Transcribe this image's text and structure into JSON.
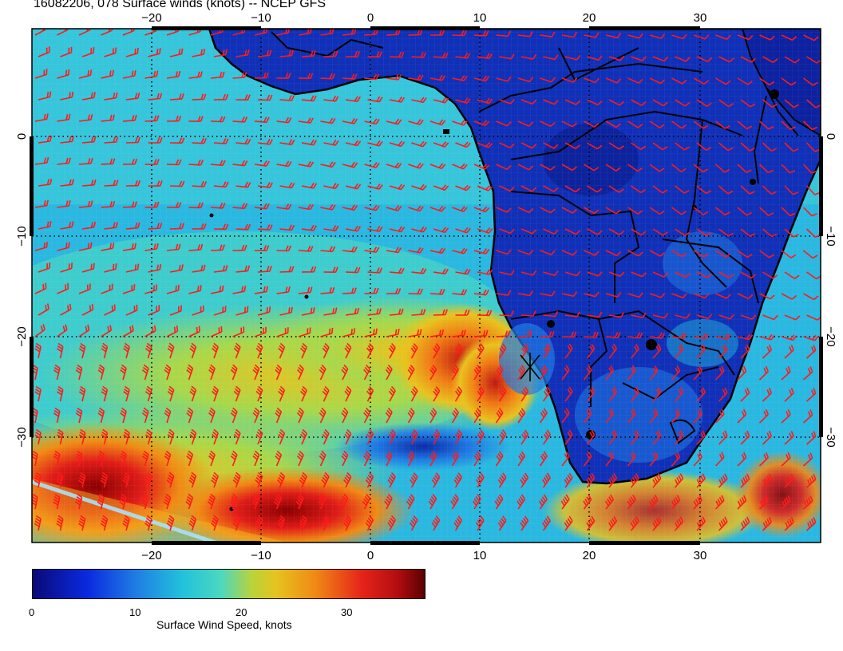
{
  "title": "16082206, 078 Surface winds (knots) -- NCEP GFS",
  "map": {
    "region": "South Atlantic / Southern Africa",
    "top_lon_labels": [
      "−20",
      "−10",
      "0",
      "10",
      "20",
      "30"
    ],
    "bottom_lon_labels": [
      "−20",
      "−10",
      "0",
      "10",
      "20",
      "30"
    ],
    "left_lat_labels": [
      "0",
      "−10",
      "−20",
      "−30"
    ],
    "right_lat_labels": [
      "0",
      "−10",
      "−20",
      "−30"
    ],
    "land_color": "#1030b8",
    "barb_color": "#ff1a1a",
    "grid": "dotted"
  },
  "colorbar": {
    "title": "Surface Wind Speed, knots",
    "tick_labels": [
      "0",
      "10",
      "20",
      "30"
    ],
    "tick_values": [
      0,
      10,
      20,
      30
    ],
    "range": [
      0,
      37
    ]
  }
}
